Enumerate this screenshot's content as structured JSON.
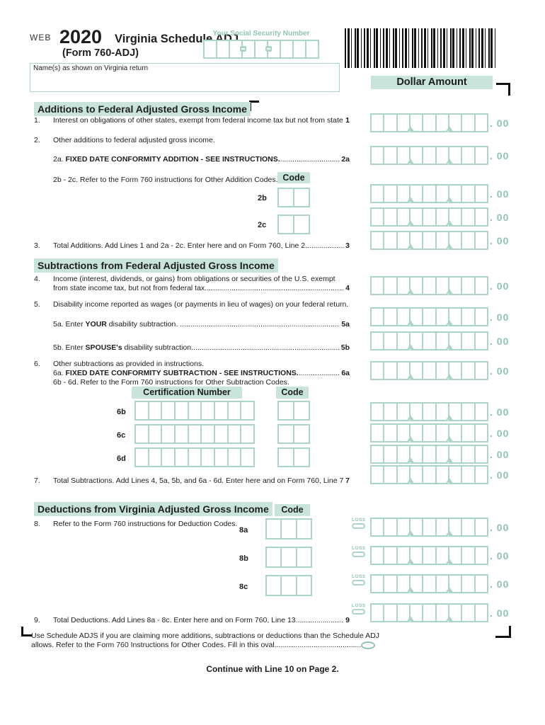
{
  "header": {
    "web": "WEB",
    "year": "2020",
    "title": "Virginia Schedule ADJ",
    "form": "(Form 760-ADJ)",
    "ssn_label": "Your Social Security Number",
    "name_label": "Name(s) as shown on Virginia return",
    "dollar_amount": "Dollar Amount"
  },
  "sections": {
    "additions": "Additions to Federal Adjusted Gross Income",
    "subtractions": "Subtractions from Federal Adjusted Gross Income",
    "deductions": "Deductions from Virginia Adjusted Gross Income"
  },
  "lines": {
    "l1": {
      "num": "1.",
      "text": "Interest on obligations of other states, exempt from federal income tax but not from state tax",
      "dots": "....................................",
      "ref": "1"
    },
    "l2": {
      "num": "2.",
      "text": "Other additions to federal adjusted gross income."
    },
    "l2a": {
      "pre": "2a. ",
      "bold": "FIXED DATE CONFORMITY ADDITION - SEE INSTRUCTIONS.",
      "dots": "...............................................................",
      "ref": "2a"
    },
    "l2bc": {
      "text": "2b - 2c. Refer to the Form 760 instructions for Other Addition Codes."
    },
    "code_additions": "Code",
    "f2b": "2b",
    "f2c": "2c",
    "l3": {
      "num": "3.",
      "text": "Total Additions. Add Lines 1 and 2a - 2c. Enter here and on Form 760, Line 2",
      "dots": "...................................................",
      "ref": "3"
    },
    "l4": {
      "num": "4.",
      "line1": "Income (interest, dividends, or gains) from obligations or securities of the U.S. exempt",
      "line2": "from state income tax, but not from federal tax.",
      "dots": "..............................................................................................",
      "ref": "4"
    },
    "l5": {
      "num": "5.",
      "text": "Disability income reported as wages (or payments in lieu of wages) on your federal return."
    },
    "l5a": {
      "pre": "5a. Enter ",
      "bold": "YOUR",
      "post": " disability subtraction. ",
      "dots": "......................................................................................................",
      "ref": "5a"
    },
    "l5b": {
      "pre": "5b. Enter ",
      "bold": "SPOUSE's",
      "post": " disability subtraction.",
      "dots": "...................................................................................................",
      "ref": "5b"
    },
    "l6": {
      "num": "6.",
      "text": "Other subtractions as provided in instructions."
    },
    "l6a": {
      "pre": "6a. ",
      "bold": "FIXED DATE CONFORMITY SUBTRACTION - SEE INSTRUCTIONS.",
      "dots": "......................................................",
      "ref": "6a"
    },
    "l6bd": {
      "text": "6b - 6d. Refer to the Form 760 instructions for Other Subtraction Codes."
    },
    "cert_header": "Certification Number",
    "code_subtractions": "Code",
    "f6b": "6b",
    "f6c": "6c",
    "f6d": "6d",
    "l7": {
      "num": "7.",
      "text": "Total Subtractions. Add Lines 4, 5a, 5b, and 6a - 6d. Enter here and on Form 760, Line 7. ",
      "dots": "............................",
      "ref": "7"
    },
    "code_deductions": "Code",
    "l8": {
      "num": "8.",
      "text": "Refer to the Form 760 instructions for Deduction Codes."
    },
    "f8a": "8a",
    "f8b": "8b",
    "f8c": "8c",
    "l9": {
      "num": "9.",
      "text": "Total Deductions. Add Lines 8a - 8c. Enter here and on Form 760, Line 13",
      "dots": "..........................................................",
      "ref": "9"
    }
  },
  "footer": {
    "line1": "Use Schedule ADJS if you are claiming more additions, subtractions or deductions than the Schedule ADJ",
    "line2": "allows. Refer to the Form 760 Instructions for Other Codes. Fill in this oval.",
    "dots": "......................................................",
    "continue": "Continue with Line 10 on Page 2."
  },
  "amounts": {
    "suffix": ". 00",
    "loss_label": "LOSS"
  },
  "colors": {
    "teal_border": "#abd5c5",
    "mint_background": "#c9e5d9",
    "teal_text": "#8ec4b1"
  }
}
